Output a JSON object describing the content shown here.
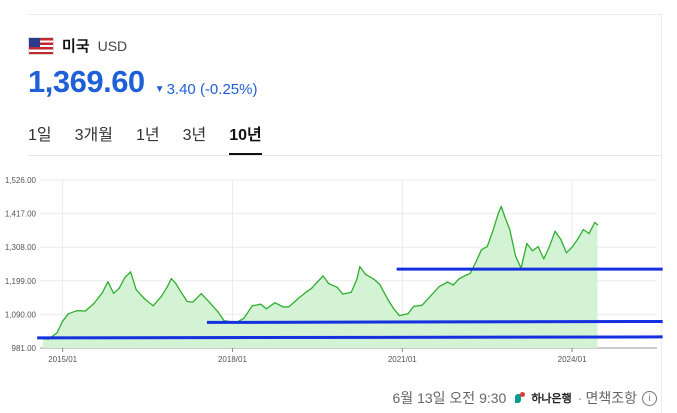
{
  "currency": {
    "name": "미국",
    "code": "USD",
    "flag_icon": "us-flag-icon"
  },
  "quote": {
    "price": "1,369.60",
    "change": "3.40 (-0.25%)",
    "direction_icon": "down-triangle-icon",
    "color": "#1f5fd8"
  },
  "tabs": [
    {
      "label": "1일",
      "active": false
    },
    {
      "label": "3개월",
      "active": false
    },
    {
      "label": "1년",
      "active": false
    },
    {
      "label": "3년",
      "active": false
    },
    {
      "label": "10년",
      "active": true
    }
  ],
  "footer": {
    "timestamp": "6월 13일 오전 9:30",
    "source": "하나은행",
    "disclaimer": "면책조항"
  },
  "chart_data": {
    "type": "area",
    "y_tick_labels": [
      "1,526.00",
      "1,417.00",
      "1,308.00",
      "1,199.00",
      "1,090.00",
      "981.00"
    ],
    "ylim": [
      981,
      1526
    ],
    "x_tick_labels": [
      "2015/01",
      "2018/01",
      "2021/01",
      "2024/01"
    ],
    "x_ticks": [
      2015.0,
      2018.0,
      2021.0,
      2024.0
    ],
    "xlim": [
      2014.6,
      2025.5
    ],
    "grid": true,
    "line_color": "#2faf2f",
    "fill_color": "#d4f3d4",
    "overlay_color": "#1530e0",
    "series": [
      {
        "x": [
          2014.65,
          2014.75,
          2014.9,
          2015.0,
          2015.1,
          2015.25,
          2015.4,
          2015.55,
          2015.7,
          2015.8,
          2015.9,
          2016.0,
          2016.1,
          2016.2,
          2016.3,
          2016.45,
          2016.6,
          2016.75,
          2016.85,
          2016.92,
          2017.0,
          2017.1,
          2017.2,
          2017.3,
          2017.45,
          2017.6,
          2017.75,
          2017.85,
          2017.95,
          2018.05,
          2018.2,
          2018.35,
          2018.5,
          2018.6,
          2018.75,
          2018.9,
          2019.0,
          2019.15,
          2019.3,
          2019.4,
          2019.5,
          2019.6,
          2019.7,
          2019.85,
          2019.95,
          2020.1,
          2020.2,
          2020.25,
          2020.35,
          2020.5,
          2020.6,
          2020.75,
          2020.85,
          2020.95,
          2021.1,
          2021.2,
          2021.35,
          2021.5,
          2021.65,
          2021.8,
          2021.9,
          2022.0,
          2022.1,
          2022.2,
          2022.3,
          2022.4,
          2022.5,
          2022.6,
          2022.7,
          2022.75,
          2022.8,
          2022.9,
          2023.0,
          2023.1,
          2023.2,
          2023.3,
          2023.4,
          2023.5,
          2023.6,
          2023.7,
          2023.8,
          2023.9,
          2024.0,
          2024.1,
          2024.2,
          2024.3,
          2024.4,
          2024.45
        ],
        "values": [
          1011,
          1010,
          1030,
          1068,
          1092,
          1102,
          1101,
          1125,
          1160,
          1196,
          1158,
          1175,
          1210,
          1228,
          1170,
          1140,
          1118,
          1150,
          1180,
          1206,
          1190,
          1160,
          1132,
          1130,
          1157,
          1128,
          1097,
          1070,
          1067,
          1062,
          1077,
          1118,
          1123,
          1108,
          1128,
          1114,
          1115,
          1140,
          1162,
          1175,
          1195,
          1215,
          1190,
          1178,
          1156,
          1162,
          1205,
          1245,
          1220,
          1204,
          1188,
          1137,
          1108,
          1086,
          1092,
          1116,
          1120,
          1150,
          1180,
          1195,
          1185,
          1205,
          1215,
          1223,
          1260,
          1300,
          1310,
          1360,
          1420,
          1440,
          1412,
          1365,
          1280,
          1240,
          1320,
          1296,
          1310,
          1270,
          1310,
          1360,
          1333,
          1290,
          1308,
          1335,
          1365,
          1352,
          1388,
          1381
        ]
      }
    ],
    "overlay_lines": [
      {
        "x": [
          2014.55,
          2025.6
        ],
        "values": [
          1014,
          1017
        ]
      },
      {
        "x": [
          2017.55,
          2025.6
        ],
        "values": [
          1064,
          1067
        ]
      },
      {
        "x": [
          2020.9,
          2025.6
        ],
        "values": [
          1237,
          1237
        ]
      }
    ]
  }
}
